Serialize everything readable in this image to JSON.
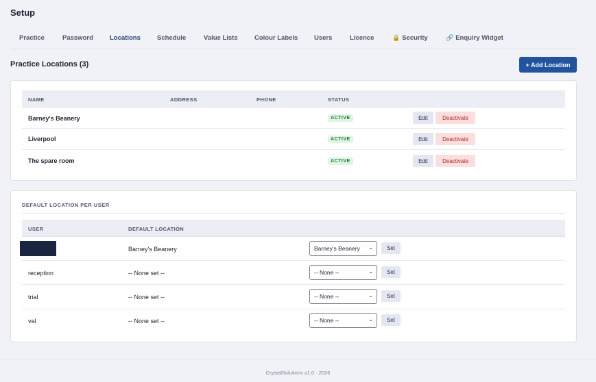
{
  "page": {
    "title": "Setup"
  },
  "tabs": [
    {
      "label": "Practice",
      "icon": ""
    },
    {
      "label": "Password",
      "icon": ""
    },
    {
      "label": "Locations",
      "icon": ""
    },
    {
      "label": "Schedule",
      "icon": ""
    },
    {
      "label": "Value Lists",
      "icon": ""
    },
    {
      "label": "Colour Labels",
      "icon": ""
    },
    {
      "label": "Users",
      "icon": ""
    },
    {
      "label": "Licence",
      "icon": ""
    },
    {
      "label": "Security",
      "icon": "🔒"
    },
    {
      "label": "Enquiry Widget",
      "icon": "🔗"
    }
  ],
  "active_tab": "Locations",
  "locations": {
    "title": "Practice Locations (3)",
    "add_button": "+ Add Location",
    "headers": {
      "name": "NAME",
      "address": "ADDRESS",
      "phone": "PHONE",
      "status": "STATUS"
    },
    "rows": [
      {
        "name": "Barney's Beanery",
        "address": "",
        "phone": "",
        "status": "ACTIVE",
        "edit": "Edit",
        "deactivate": "Deactivate"
      },
      {
        "name": "Liverpool",
        "address": "",
        "phone": "",
        "status": "ACTIVE",
        "edit": "Edit",
        "deactivate": "Deactivate"
      },
      {
        "name": "The spare room",
        "address": "",
        "phone": "",
        "status": "ACTIVE",
        "edit": "Edit",
        "deactivate": "Deactivate"
      }
    ]
  },
  "defaults": {
    "title": "DEFAULT LOCATION PER USER",
    "headers": {
      "user": "USER",
      "default_location": "DEFAULT LOCATION"
    },
    "rows": [
      {
        "user": "",
        "redacted": true,
        "default_location": "Barney's Beanery",
        "select_value": "Barney's Beanery",
        "set": "Set"
      },
      {
        "user": "reception",
        "redacted": false,
        "default_location": "-- None set --",
        "select_value": "-- None --",
        "set": "Set"
      },
      {
        "user": "trial",
        "redacted": false,
        "default_location": "-- None set --",
        "select_value": "-- None --",
        "set": "Set"
      },
      {
        "user": "val",
        "redacted": false,
        "default_location": "-- None set --",
        "select_value": "-- None --",
        "set": "Set"
      }
    ]
  },
  "footer": {
    "text": "CrystalSolutions v1.0  ·  2026"
  },
  "colors": {
    "accent": "#22549d",
    "active_badge_bg": "#dff5e4",
    "active_badge_text": "#1f7a3a",
    "deactivate_bg": "#fbdede",
    "deactivate_text": "#b42525"
  }
}
